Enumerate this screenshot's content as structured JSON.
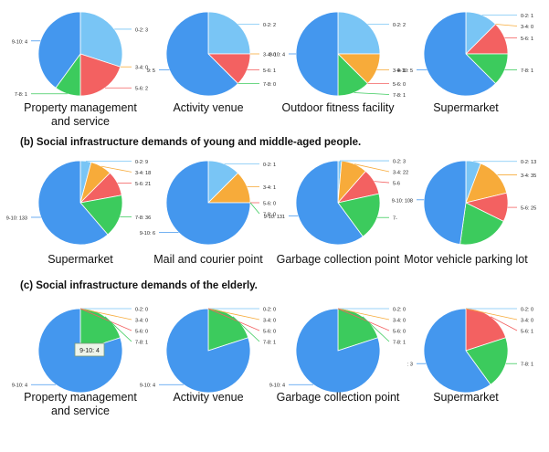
{
  "rows": [
    {
      "title": ""
    },
    {
      "title": "(b) Social infrastructure demands of young and middle-aged people."
    },
    {
      "title": "(c) Social infrastructure demands of the elderly."
    }
  ],
  "colors": {
    "0-2": "#79c5f5",
    "3-4": "#f7ab3a",
    "5-6": "#f36161",
    "7-8": "#3ccb5d",
    "9-10": "#4497ee"
  },
  "chart_data": [
    {
      "type": "pie",
      "row": 0,
      "col": 0,
      "caption": [
        "Property management",
        "and service"
      ],
      "slices": [
        {
          "category": "0-2",
          "value": 3,
          "label": "0-2: 3"
        },
        {
          "category": "3-4",
          "value": 0,
          "label": "3-4: 0"
        },
        {
          "category": "5-6",
          "value": 2,
          "label": "5-6: 2"
        },
        {
          "category": "7-8",
          "value": 1,
          "label": "7-8: 1"
        },
        {
          "category": "9-10",
          "value": 4,
          "label": "9-10: 4"
        }
      ]
    },
    {
      "type": "pie",
      "row": 0,
      "col": 1,
      "caption": [
        "Activity venue"
      ],
      "slices": [
        {
          "category": "0-2",
          "value": 2,
          "label": "0-2: 2"
        },
        {
          "category": "3-4",
          "value": 0,
          "label": "3-4: 0"
        },
        {
          "category": "5-6",
          "value": 1,
          "label": "5-6: 1"
        },
        {
          "category": "7-8",
          "value": 0,
          "label": "7-8: 0"
        },
        {
          "category": "9-10",
          "value": 5,
          "label": "9: 5"
        }
      ]
    },
    {
      "type": "pie",
      "row": 0,
      "col": 2,
      "caption": [
        "Outdoor fitness facility"
      ],
      "slices": [
        {
          "category": "0-2",
          "value": 2,
          "label": "0-2: 2"
        },
        {
          "category": "3-4",
          "value": 1,
          "label": "3-4: 1"
        },
        {
          "category": "5-6",
          "value": 0,
          "label": "5-6: 0"
        },
        {
          "category": "7-8",
          "value": 1,
          "label": "7-8: 1"
        },
        {
          "category": "9-10",
          "value": 4,
          "label": "9-10: 4"
        }
      ]
    },
    {
      "type": "pie",
      "row": 0,
      "col": 3,
      "caption": [
        "Supermarket"
      ],
      "slices": [
        {
          "category": "0-2",
          "value": 1,
          "label": "0-2: 1"
        },
        {
          "category": "3-4",
          "value": 0,
          "label": "3-4: 0"
        },
        {
          "category": "5-6",
          "value": 1,
          "label": "5-6: 1"
        },
        {
          "category": "7-8",
          "value": 1,
          "label": "7-8: 1"
        },
        {
          "category": "9-10",
          "value": 5,
          "label": "9-10: 5"
        }
      ]
    },
    {
      "type": "pie",
      "row": 1,
      "col": 0,
      "caption": [
        "Supermarket"
      ],
      "slices": [
        {
          "category": "0-2",
          "value": 9,
          "label": "0-2: 9"
        },
        {
          "category": "3-4",
          "value": 18,
          "label": "3-4: 18"
        },
        {
          "category": "5-6",
          "value": 21,
          "label": "5-6: 21"
        },
        {
          "category": "7-8",
          "value": 36,
          "label": "7-8: 36"
        },
        {
          "category": "9-10",
          "value": 133,
          "label": "9-10: 133"
        }
      ]
    },
    {
      "type": "pie",
      "row": 1,
      "col": 1,
      "caption": [
        "Mail and courier point"
      ],
      "slices": [
        {
          "category": "0-2",
          "value": 1,
          "label": "0-2: 1"
        },
        {
          "category": "3-4",
          "value": 1,
          "label": "3-4: 1"
        },
        {
          "category": "5-6",
          "value": 0,
          "label": "5-6: 0"
        },
        {
          "category": "7-8",
          "value": 0,
          "label": "7-8: 0"
        },
        {
          "category": "9-10",
          "value": 6,
          "label": "9-10: 6"
        }
      ]
    },
    {
      "type": "pie",
      "row": 1,
      "col": 2,
      "caption": [
        "Garbage collection point"
      ],
      "slices": [
        {
          "category": "0-2",
          "value": 3,
          "label": "0-2: 3"
        },
        {
          "category": "3-4",
          "value": 22,
          "label": "3-4: 22"
        },
        {
          "category": "5-6",
          "value": 22,
          "label": "5-6"
        },
        {
          "category": "7-8",
          "value": 40,
          "label": "7-"
        },
        {
          "category": "9-10",
          "value": 131,
          "label": "9-10: 131"
        }
      ]
    },
    {
      "type": "pie",
      "row": 1,
      "col": 3,
      "caption": [
        "Motor vehicle parking lot"
      ],
      "slices": [
        {
          "category": "0-2",
          "value": 13,
          "label": "0-2: 13"
        },
        {
          "category": "3-4",
          "value": 35,
          "label": "3-4: 35"
        },
        {
          "category": "5-6",
          "value": 25,
          "label": "5-6: 25"
        },
        {
          "category": "7-8",
          "value": 45,
          "label": ""
        },
        {
          "category": "9-10",
          "value": 108,
          "label": "9-10: 108"
        }
      ]
    },
    {
      "type": "pie",
      "row": 2,
      "col": 0,
      "caption": [
        "Property management",
        "and service"
      ],
      "tooltip": "9-10: 4",
      "slices": [
        {
          "category": "0-2",
          "value": 0,
          "label": "0-2: 0"
        },
        {
          "category": "3-4",
          "value": 0,
          "label": "3-4: 0"
        },
        {
          "category": "5-6",
          "value": 0,
          "label": "5-6: 0"
        },
        {
          "category": "7-8",
          "value": 1,
          "label": "7-8: 1"
        },
        {
          "category": "9-10",
          "value": 4,
          "label": "9-10: 4"
        }
      ]
    },
    {
      "type": "pie",
      "row": 2,
      "col": 1,
      "caption": [
        "Activity venue"
      ],
      "slices": [
        {
          "category": "0-2",
          "value": 0,
          "label": "0-2: 0"
        },
        {
          "category": "3-4",
          "value": 0,
          "label": "3-4: 0"
        },
        {
          "category": "5-6",
          "value": 0,
          "label": "5-6: 0"
        },
        {
          "category": "7-8",
          "value": 1,
          "label": "7-8: 1"
        },
        {
          "category": "9-10",
          "value": 4,
          "label": "9-10: 4"
        }
      ]
    },
    {
      "type": "pie",
      "row": 2,
      "col": 2,
      "caption": [
        "Garbage collection point"
      ],
      "slices": [
        {
          "category": "0-2",
          "value": 0,
          "label": "0-2: 0"
        },
        {
          "category": "3-4",
          "value": 0,
          "label": "3-4: 0"
        },
        {
          "category": "5-6",
          "value": 0,
          "label": "5-6: 0"
        },
        {
          "category": "7-8",
          "value": 1,
          "label": "7-8: 1"
        },
        {
          "category": "9-10",
          "value": 4,
          "label": "9-10: 4"
        }
      ]
    },
    {
      "type": "pie",
      "row": 2,
      "col": 3,
      "caption": [
        "Supermarket"
      ],
      "slices": [
        {
          "category": "0-2",
          "value": 0,
          "label": "0-2: 0"
        },
        {
          "category": "3-4",
          "value": 0,
          "label": "3-4: 0"
        },
        {
          "category": "5-6",
          "value": 1,
          "label": "5-6: 1"
        },
        {
          "category": "7-8",
          "value": 1,
          "label": "7-8: 1"
        },
        {
          "category": "9-10",
          "value": 3,
          "label": ": 3"
        }
      ]
    }
  ]
}
